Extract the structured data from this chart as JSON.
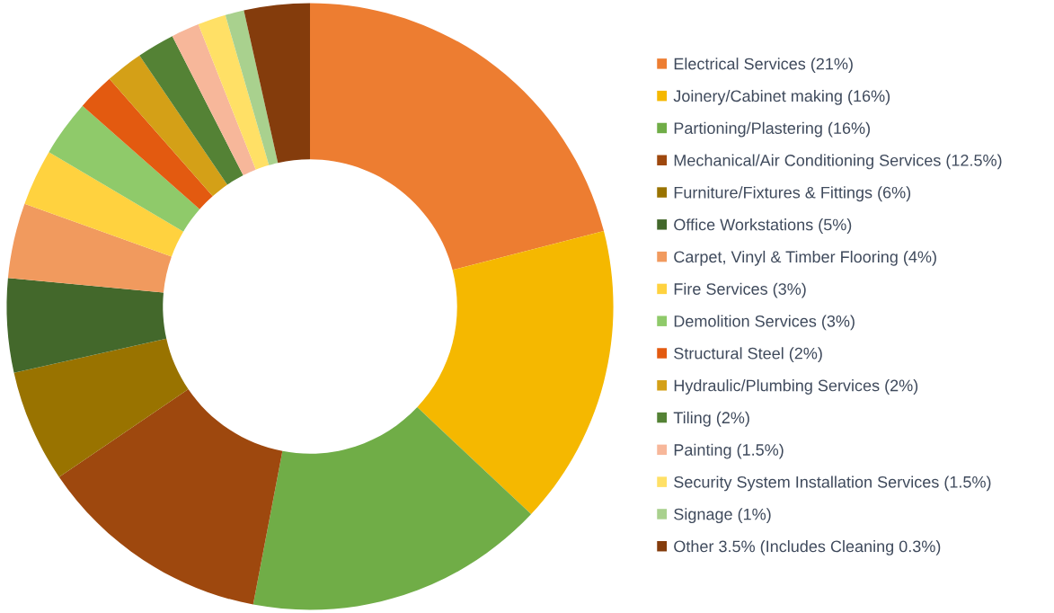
{
  "chart_data": {
    "type": "donut",
    "categories": [
      "Electrical Services (21%)",
      "Joinery/Cabinet making (16%)",
      "Partioning/Plastering (16%)",
      "Mechanical/Air Conditioning Services (12.5%)",
      "Furniture/Fixtures & Fittings (6%)",
      "Office Workstations (5%)",
      "Carpet, Vinyl & Timber Flooring (4%)",
      "Fire Services (3%)",
      "Demolition Services (3%)",
      "Structural Steel (2%)",
      "Hydraulic/Plumbing Services (2%)",
      "Tiling (2%)",
      "Painting (1.5%)",
      "Security System Installation Services (1.5%)",
      "Signage (1%)",
      "Other 3.5% (Includes Cleaning 0.3%)"
    ],
    "values": [
      21,
      16,
      16,
      12.5,
      6,
      5,
      4,
      3,
      3,
      2,
      2,
      2,
      1.5,
      1.5,
      1,
      3.5
    ],
    "colors": [
      "#ed7d31",
      "#f5b800",
      "#70ad47",
      "#9e480e",
      "#997300",
      "#43682b",
      "#f19a5e",
      "#ffd23f",
      "#8fca6a",
      "#e35a10",
      "#d4a017",
      "#548235",
      "#f7b79a",
      "#ffe066",
      "#a9d18e",
      "#843c0c"
    ],
    "legend": "right"
  }
}
